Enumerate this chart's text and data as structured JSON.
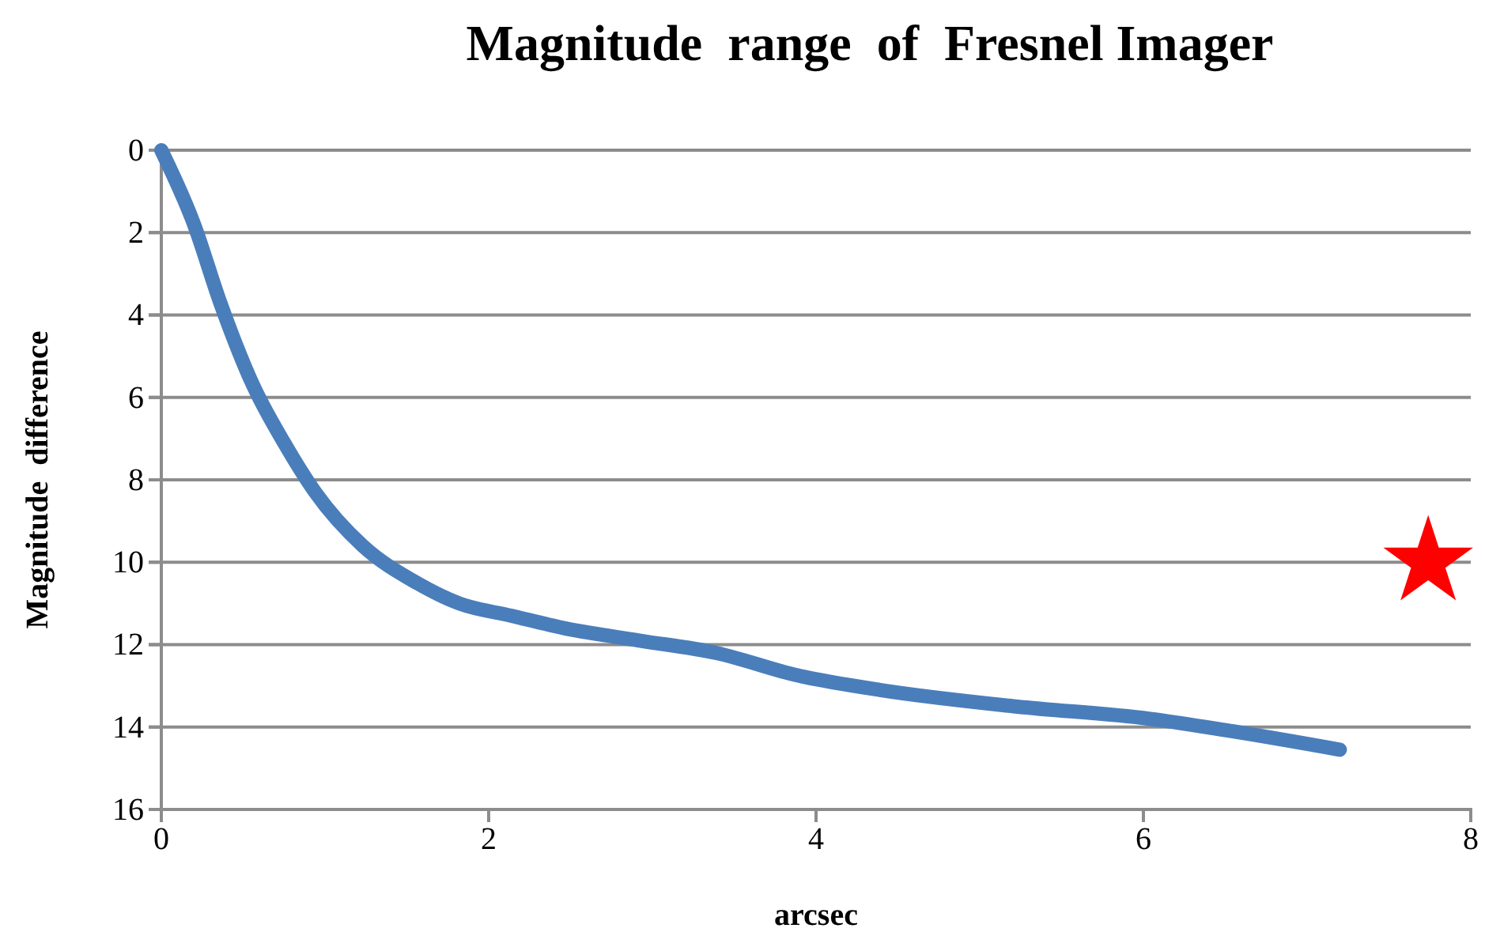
{
  "chart_data": {
    "type": "line",
    "title": "Magnitude  range  of  Fresnel Imager",
    "xlabel": "arcsec",
    "ylabel": "Magnitude  difference",
    "xlim": [
      0,
      8
    ],
    "xticks": [
      0,
      2,
      4,
      6,
      8
    ],
    "ylim": [
      16,
      0
    ],
    "yticks": [
      0,
      2,
      4,
      6,
      8,
      10,
      12,
      14,
      16
    ],
    "grid": "y",
    "series": [
      {
        "color": "#4a7ebb",
        "x": [
          0,
          0.2,
          0.36,
          0.56,
          0.75,
          0.94,
          1.23,
          1.56,
          1.82,
          2.14,
          2.46,
          2.92,
          3.39,
          3.89,
          4.39,
          5.22,
          6.04,
          6.54,
          7.2
        ],
        "values": [
          0,
          1.8,
          3.7,
          5.7,
          7.1,
          8.3,
          9.6,
          10.5,
          11.0,
          11.3,
          11.6,
          11.9,
          12.2,
          12.75,
          13.1,
          13.5,
          13.8,
          14.1,
          14.55
        ],
        "marker": "none",
        "line_style": "solid"
      },
      {
        "type": "scatter",
        "color": "#ff0000",
        "x": [
          7.74
        ],
        "values": [
          10.0
        ],
        "marker": "star"
      }
    ]
  }
}
